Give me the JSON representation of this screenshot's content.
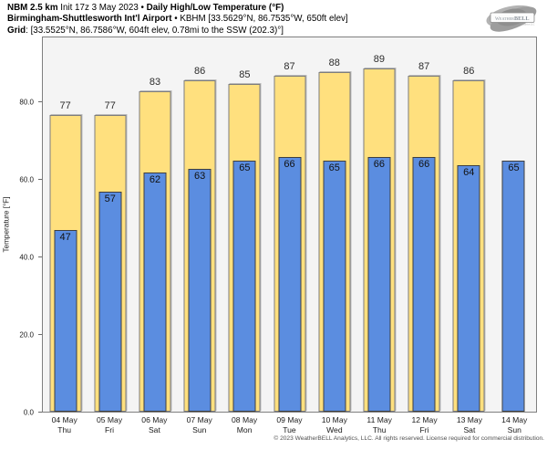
{
  "header": {
    "line1_model": "NBM 2.5 km",
    "line1_init": " Init 17z 3 May 2023 • ",
    "line1_title": "Daily High/Low Temperature (°F)",
    "line2_station": "Birmingham-Shuttlesworth Int'l Airport",
    "line2_detail": " • KBHM [33.5629°N, 86.7535°W, 650ft elev]",
    "line3_label": "Grid",
    "line3_detail": ": [33.5525°N, 86.7586°W, 604ft elev, 0.78mi to the SSW (202.3)°]"
  },
  "logo": {
    "name": "WeatherBELL",
    "text_weather": "Weather",
    "text_bell": "BELL",
    "text_sub": "Analytics LLC"
  },
  "chart_data": {
    "type": "bar",
    "title": "Daily High/Low Temperature (°F)",
    "ylabel": "Temperature [°F]",
    "ylim": [
      0,
      97
    ],
    "yticks": [
      0,
      20,
      40,
      60,
      80
    ],
    "ytick_labels": [
      "0.0",
      "20.0",
      "40.0",
      "60.0",
      "80.0"
    ],
    "grid": false,
    "legend_position": "none",
    "categories": [
      {
        "date": "04 May",
        "day": "Thu"
      },
      {
        "date": "05 May",
        "day": "Fri"
      },
      {
        "date": "06 May",
        "day": "Sat"
      },
      {
        "date": "07 May",
        "day": "Sun"
      },
      {
        "date": "08 May",
        "day": "Mon"
      },
      {
        "date": "09 May",
        "day": "Tue"
      },
      {
        "date": "10 May",
        "day": "Wed"
      },
      {
        "date": "11 May",
        "day": "Thu"
      },
      {
        "date": "12 May",
        "day": "Fri"
      },
      {
        "date": "13 May",
        "day": "Sat"
      },
      {
        "date": "14 May",
        "day": "Sun"
      }
    ],
    "series": [
      {
        "name": "High",
        "color": "#ffe07e",
        "values": [
          77,
          77,
          83,
          86,
          85,
          87,
          88,
          89,
          87,
          86,
          null
        ]
      },
      {
        "name": "Low",
        "color": "#5b8de0",
        "values": [
          47,
          57,
          62,
          63,
          65,
          66,
          65,
          66,
          66,
          64,
          65
        ]
      }
    ],
    "colors": {
      "plot_background": "#f4f4f4",
      "axis_border": "#7f7f7f",
      "high_fill": "#ffe07e",
      "low_fill": "#5b8de0"
    }
  },
  "footer": {
    "copyright": "© 2023 WeatherBELL Analytics, LLC. All rights reserved. License required for commercial distribution."
  }
}
